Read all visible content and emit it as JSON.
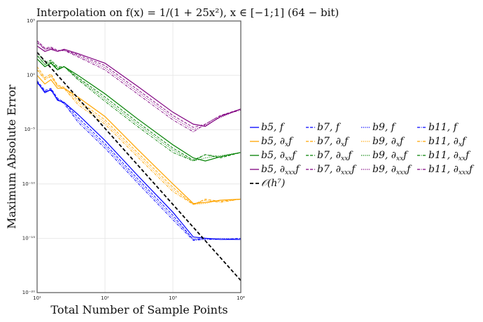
{
  "chart_data": {
    "type": "line",
    "title": "Interpolation on f(x) = 1/(1 + 25x²), x ∈ [−1;1] (64 − bit)",
    "xlabel": "Total Number of Sample Points",
    "ylabel": "Maximum Absolute Error",
    "xscale": "log",
    "yscale": "log",
    "xlim": [
      10,
      10000
    ],
    "ylim": [
      1e-20,
      100000.0
    ],
    "xticks": [
      10,
      100,
      1000,
      10000
    ],
    "xtick_labels": [
      "10¹",
      "10²",
      "10³",
      "10⁴"
    ],
    "yticks": [
      100000.0,
      1,
      1e-05,
      1e-10,
      1e-15,
      1e-20
    ],
    "ytick_labels": [
      "10⁵",
      "10⁰",
      "10⁻⁵",
      "10⁻¹⁰",
      "10⁻¹⁵",
      "10⁻²⁰"
    ],
    "grid": true,
    "legend_position": "right-outside",
    "x": [
      10,
      13,
      16,
      20,
      25,
      40,
      100,
      300,
      1000,
      2000,
      3000,
      5000,
      10000
    ],
    "colors": {
      "f": "#0000ff",
      "dx": "#ffa500",
      "dxx": "#008000",
      "dxxx": "#800080"
    },
    "series": [
      {
        "name": "b5, f",
        "label": {
          "pre": "b5, ",
          "d": "",
          "sub": "",
          "post": "f"
        },
        "color": "#0000ff",
        "style": "solid",
        "values": [
          0.25,
          0.025,
          0.05,
          0.005,
          0.0032,
          0.00025,
          1e-06,
          6.3e-10,
          2.5e-13,
          1.3e-15,
          1e-15,
          7.9e-16,
          7.9e-16
        ]
      },
      {
        "name": "b7, f",
        "label": {
          "pre": "b7, ",
          "d": "",
          "sub": "",
          "post": "f"
        },
        "color": "#0000ff",
        "style": "dashed",
        "values": [
          0.32,
          0.04,
          0.063,
          0.0079,
          0.0032,
          0.00013,
          5e-07,
          3.2e-10,
          1.3e-13,
          7.9e-16,
          1e-15,
          7.9e-16,
          1e-15
        ]
      },
      {
        "name": "b9, f",
        "label": {
          "pre": "b9, ",
          "d": "",
          "sub": "",
          "post": "f"
        },
        "color": "#0000ff",
        "style": "dotted",
        "values": [
          0.25,
          0.032,
          0.05,
          0.0063,
          0.0025,
          7.9e-05,
          3.2e-07,
          2e-10,
          7.9e-14,
          7.9e-16,
          7.9e-16,
          1e-15,
          7.9e-16
        ]
      },
      {
        "name": "b11, f",
        "label": {
          "pre": "b11, ",
          "d": "",
          "sub": "",
          "post": "f"
        },
        "color": "#0000ff",
        "style": "dashdot",
        "values": [
          0.2,
          0.032,
          0.04,
          0.0063,
          0.0025,
          5e-05,
          2e-07,
          1.3e-10,
          5e-14,
          6.3e-16,
          7.9e-16,
          7.9e-16,
          7.9e-16
        ]
      },
      {
        "name": "b5, ∂x f",
        "label": {
          "pre": "b5, ",
          "d": "∂",
          "sub": "x",
          "post": "f"
        },
        "color": "#ffa500",
        "style": "solid",
        "values": [
          1,
          0.16,
          0.4,
          0.063,
          0.063,
          0.01,
          0.00016,
          1.6e-07,
          1e-10,
          1.6e-12,
          2e-12,
          3.2e-12,
          4e-12
        ]
      },
      {
        "name": "b7, ∂x f",
        "label": {
          "pre": "b7, ",
          "d": "∂",
          "sub": "x",
          "post": "f"
        },
        "color": "#ffa500",
        "style": "dashed",
        "values": [
          6.3,
          0.63,
          1.3,
          0.13,
          0.079,
          0.005,
          7.9e-05,
          7.9e-08,
          5e-11,
          1.3e-12,
          4e-12,
          2.5e-12,
          4e-12
        ]
      },
      {
        "name": "b9, ∂x f",
        "label": {
          "pre": "b9, ",
          "d": "∂",
          "sub": "x",
          "post": "f"
        },
        "color": "#ffa500",
        "style": "dotted",
        "values": [
          4,
          0.5,
          1,
          0.1,
          0.063,
          0.0032,
          5e-05,
          5e-08,
          3.2e-11,
          1.3e-12,
          1.6e-12,
          3.2e-12,
          4e-12
        ]
      },
      {
        "name": "b11, ∂x f",
        "label": {
          "pre": "b11, ",
          "d": "∂",
          "sub": "x",
          "post": "f"
        },
        "color": "#ffa500",
        "style": "dashdot",
        "values": [
          3.2,
          0.4,
          0.79,
          0.1,
          0.063,
          0.002,
          3.2e-05,
          3.2e-08,
          2e-11,
          1.3e-12,
          3.2e-12,
          2e-12,
          4e-12
        ]
      },
      {
        "name": "b5, ∂xx f",
        "label": {
          "pre": "b5, ",
          "d": "∂",
          "sub": "xx",
          "post": "f"
        },
        "color": "#008000",
        "style": "solid",
        "values": [
          32.0,
          6.3,
          13.0,
          3.2,
          6.3,
          1,
          0.02,
          0.0001,
          4e-07,
          2.5e-08,
          1.3e-08,
          3.2e-08,
          7.9e-08
        ]
      },
      {
        "name": "b7, ∂xx f",
        "label": {
          "pre": "b7, ",
          "d": "∂",
          "sub": "xx",
          "post": "f"
        },
        "color": "#008000",
        "style": "dashed",
        "values": [
          130.0,
          16.0,
          25.0,
          6.3,
          6.3,
          0.63,
          0.01,
          5e-05,
          2e-07,
          1.6e-08,
          5e-08,
          2.5e-08,
          7.9e-08
        ]
      },
      {
        "name": "b9, ∂xx f",
        "label": {
          "pre": "b9, ",
          "d": "∂",
          "sub": "xx",
          "post": "f"
        },
        "color": "#008000",
        "style": "dotted",
        "values": [
          79.0,
          10.0,
          20.0,
          5,
          6.3,
          0.5,
          0.0063,
          3.2e-05,
          1.3e-07,
          1.3e-08,
          2.5e-08,
          4e-08,
          7.9e-08
        ]
      },
      {
        "name": "b11, ∂xx f",
        "label": {
          "pre": "b11, ",
          "d": "∂",
          "sub": "xx",
          "post": "f"
        },
        "color": "#008000",
        "style": "dashdot",
        "values": [
          63.0,
          10.0,
          16.0,
          4,
          6.3,
          0.4,
          0.004,
          2e-05,
          7.9e-08,
          1.3e-08,
          5e-08,
          3.2e-08,
          7.9e-08
        ]
      },
      {
        "name": "b5, ∂xxx f",
        "label": {
          "pre": "b5, ",
          "d": "∂",
          "sub": "xxx",
          "post": "f"
        },
        "color": "#800080",
        "style": "solid",
        "values": [
          500.0,
          160.0,
          250.0,
          160.0,
          250.0,
          100.0,
          13.0,
          0.1,
          0.0004,
          3.2e-05,
          2e-05,
          0.00016,
          0.00079
        ]
      },
      {
        "name": "b7, ∂xxx f",
        "label": {
          "pre": "b7, ",
          "d": "∂",
          "sub": "xxx",
          "post": "f"
        },
        "color": "#800080",
        "style": "dashed",
        "values": [
          1600.0,
          320.0,
          400.0,
          200.0,
          200.0,
          79.0,
          7.9,
          0.05,
          0.0002,
          1.6e-05,
          3.2e-05,
          0.0002,
          0.00079
        ]
      },
      {
        "name": "b9, ∂xxx f",
        "label": {
          "pre": "b9, ",
          "d": "∂",
          "sub": "xxx",
          "post": "f"
        },
        "color": "#800080",
        "style": "dotted",
        "values": [
          1300.0,
          250.0,
          320.0,
          200.0,
          200.0,
          63.0,
          5,
          0.032,
          0.00013,
          1e-05,
          2.5e-05,
          0.00013,
          0.00079
        ]
      },
      {
        "name": "b11, ∂xxx f",
        "label": {
          "pre": "b11, ",
          "d": "∂",
          "sub": "xxx",
          "post": "f"
        },
        "color": "#800080",
        "style": "dashdot",
        "values": [
          1000.0,
          250.0,
          320.0,
          160.0,
          200.0,
          50.0,
          3.2,
          0.02,
          7.9e-05,
          6.3e-06,
          3.2e-05,
          0.0002,
          0.00063
        ]
      }
    ],
    "reference": {
      "name": "𝒪(h⁷)",
      "color": "#000000",
      "style": "dashed",
      "x": [
        10,
        10000
      ],
      "values": [
        130.0,
        1.3e-19
      ]
    }
  }
}
